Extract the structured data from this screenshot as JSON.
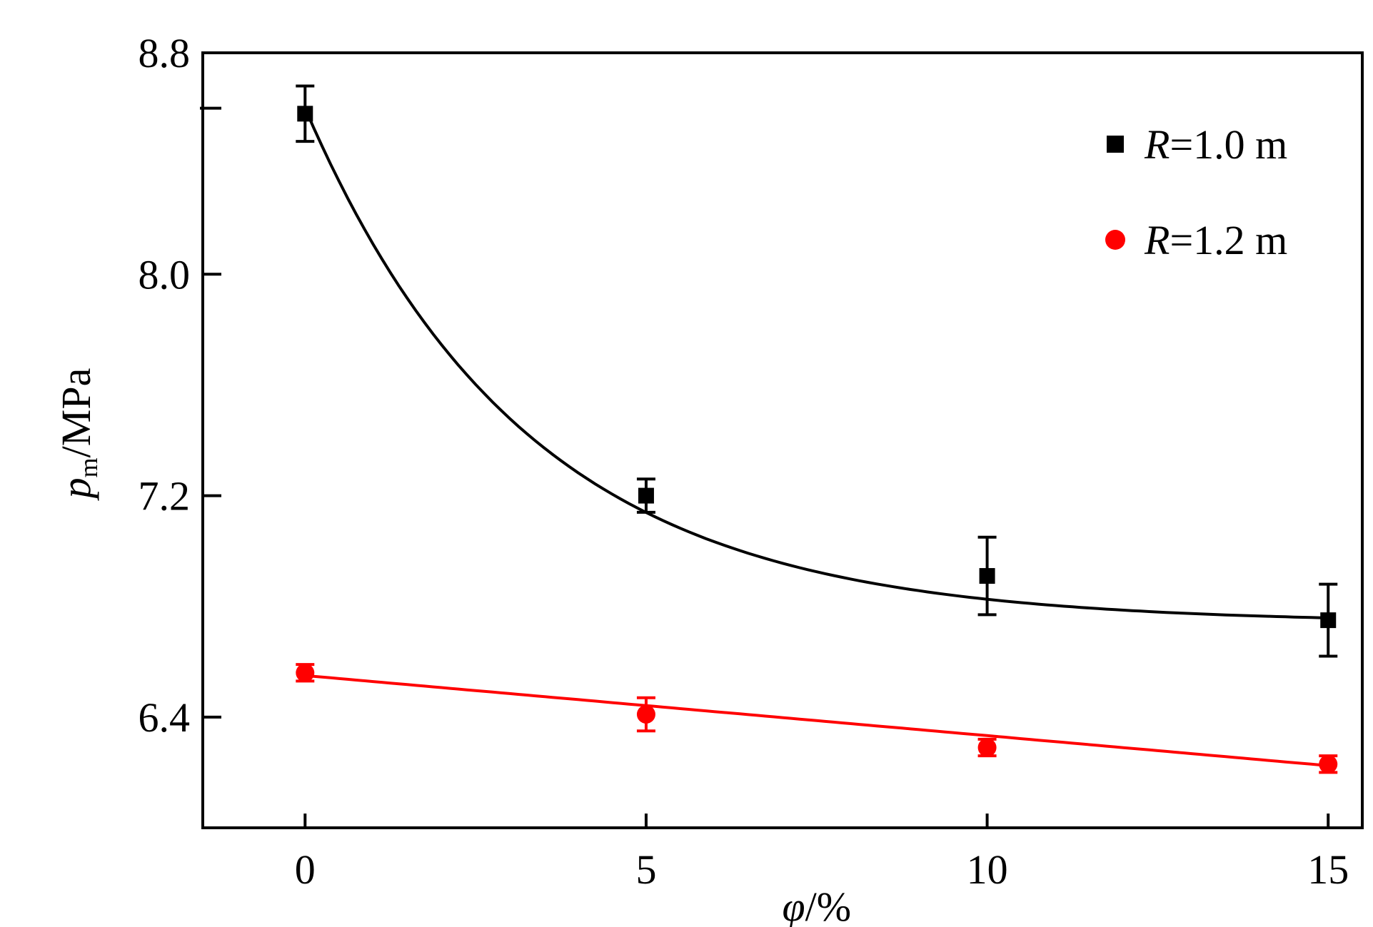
{
  "chart_data": {
    "type": "scatter",
    "x_axis": {
      "label_symbol": "φ",
      "label_unit": "/%",
      "range": [
        -1.5,
        15.5
      ],
      "ticks": [
        0,
        5,
        10,
        15
      ],
      "tick_labels": [
        "0",
        "5",
        "10",
        "15"
      ]
    },
    "y_axis": {
      "label_symbol": "p",
      "label_subscript": "m",
      "label_unit": "/MPa",
      "range": [
        6.0,
        8.8
      ],
      "ticks": [
        6.4,
        7.2,
        8.0,
        8.8
      ],
      "tick_labels": [
        "6.4",
        "7.2",
        "8.0",
        "8.8"
      ],
      "minor_ticks": [
        8.6
      ]
    },
    "legend_position": "top-right",
    "series": [
      {
        "name_symbol": "R",
        "name_value": "=1.0 m",
        "marker": "square",
        "color": "#000000",
        "x": [
          0,
          5,
          10,
          15
        ],
        "y": [
          8.58,
          7.2,
          6.91,
          6.75
        ],
        "err": [
          0.1,
          0.06,
          0.14,
          0.13
        ],
        "fit": "exponential",
        "fit_params": {
          "y0": 6.74,
          "A": 1.86,
          "t": 3.25
        }
      },
      {
        "name_symbol": "R",
        "name_value": "=1.2 m",
        "marker": "circle",
        "color": "#ff0000",
        "x": [
          0,
          5,
          10,
          15
        ],
        "y": [
          6.56,
          6.41,
          6.29,
          6.23
        ],
        "err": [
          0.03,
          0.06,
          0.03,
          0.03
        ],
        "fit": "linear",
        "fit_params": {
          "slope": -0.0217,
          "intercept": 6.55
        }
      }
    ]
  }
}
